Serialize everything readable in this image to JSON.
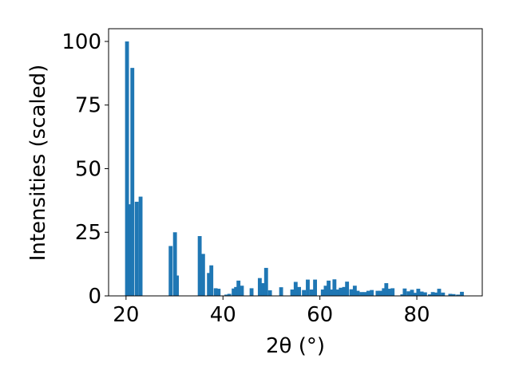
{
  "chart_data": {
    "type": "bar",
    "xlabel": "2θ (°)",
    "ylabel": "Intensities (scaled)",
    "color": "#1f77b4",
    "grid": false,
    "x": [
      20.2,
      20.8,
      21.3,
      22.2,
      23.0,
      29.2,
      30.1,
      30.5,
      35.2,
      35.9,
      37.1,
      37.6,
      38.5,
      39.1,
      40.7,
      41.3,
      42.2,
      42.7,
      43.2,
      43.9,
      45.9,
      47.6,
      48.3,
      48.9,
      49.7,
      52.0,
      54.3,
      55.0,
      55.7,
      56.7,
      57.5,
      58.3,
      59.0,
      60.6,
      61.2,
      61.8,
      62.3,
      63.0,
      63.7,
      64.3,
      65.0,
      65.6,
      66.5,
      67.2,
      67.8,
      68.6,
      69.3,
      70.0,
      70.7,
      71.9,
      72.5,
      73.2,
      73.7,
      74.3,
      75.0,
      77.0,
      77.5,
      78.3,
      79.0,
      79.7,
      80.3,
      81.0,
      81.7,
      82.7,
      83.3,
      84.0,
      84.6,
      85.4,
      86.9,
      87.6,
      88.5,
      89.3
    ],
    "values": [
      100,
      36,
      89.6,
      37,
      39,
      19.6,
      25,
      8,
      23.5,
      16.5,
      9,
      12,
      3,
      2.8,
      0.5,
      0.8,
      2.9,
      3.5,
      6,
      4,
      3,
      7,
      5,
      11,
      2.2,
      3.4,
      2.5,
      5.5,
      3.5,
      2.3,
      6.4,
      2.5,
      6.4,
      2.5,
      4,
      6,
      2.5,
      6.5,
      2.5,
      3.2,
      3.5,
      5.6,
      2.6,
      4,
      2,
      1.5,
      1.5,
      2,
      2.3,
      2,
      2,
      3,
      5,
      2.8,
      3,
      0.6,
      2.9,
      1.8,
      2.4,
      1.2,
      2.8,
      1.7,
      1.4,
      0.6,
      1.5,
      1.3,
      2.8,
      1.3,
      0.8,
      0.7,
      0.5,
      1.6
    ],
    "xlim": [
      16.4,
      93.5
    ],
    "ylim": [
      0,
      105
    ],
    "xticks": [
      20,
      40,
      60,
      80
    ],
    "yticks": [
      0,
      25,
      50,
      75,
      100
    ]
  }
}
